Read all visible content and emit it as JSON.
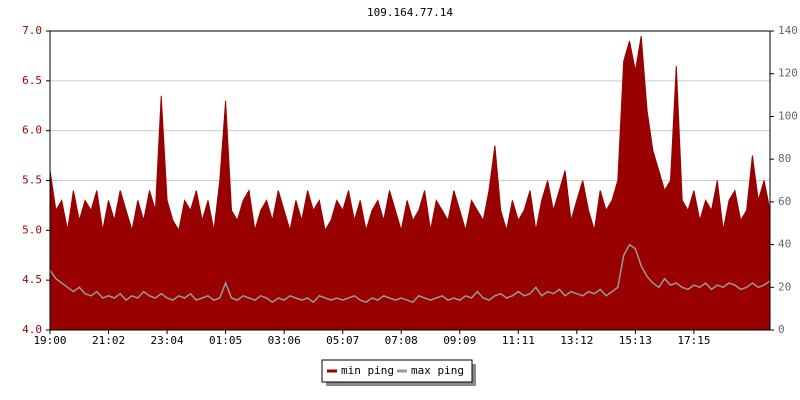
{
  "chart_data": {
    "type": "line",
    "title": "109.164.77.14",
    "categories": [
      "19:00",
      null,
      null,
      null,
      null,
      null,
      null,
      null,
      null,
      null,
      "21:02",
      null,
      null,
      null,
      null,
      null,
      null,
      null,
      null,
      null,
      "23:04",
      null,
      null,
      null,
      null,
      null,
      null,
      null,
      null,
      null,
      "01:05",
      null,
      null,
      null,
      null,
      null,
      null,
      null,
      null,
      null,
      "03:06",
      null,
      null,
      null,
      null,
      null,
      null,
      null,
      null,
      null,
      "05:07",
      null,
      null,
      null,
      null,
      null,
      null,
      null,
      null,
      null,
      "07:08",
      null,
      null,
      null,
      null,
      null,
      null,
      null,
      null,
      null,
      "09:09",
      null,
      null,
      null,
      null,
      null,
      null,
      null,
      null,
      null,
      "11:11",
      null,
      null,
      null,
      null,
      null,
      null,
      null,
      null,
      null,
      "13:12",
      null,
      null,
      null,
      null,
      null,
      null,
      null,
      null,
      null,
      "15:13",
      null,
      null,
      null,
      null,
      null,
      null,
      null,
      null,
      null,
      "17:15",
      null,
      null,
      null,
      null,
      null,
      null,
      null,
      null,
      null,
      null,
      null,
      null,
      null
    ],
    "series": [
      {
        "name": "min ping",
        "color": "#990000",
        "fill": true,
        "values": [
          5.6,
          5.2,
          5.3,
          5.0,
          5.4,
          5.1,
          5.3,
          5.2,
          5.4,
          5.0,
          5.3,
          5.1,
          5.4,
          5.2,
          5.0,
          5.3,
          5.1,
          5.4,
          5.2,
          6.35,
          5.3,
          5.1,
          5.0,
          5.3,
          5.2,
          5.4,
          5.1,
          5.3,
          5.0,
          5.5,
          6.3,
          5.2,
          5.1,
          5.3,
          5.4,
          5.0,
          5.2,
          5.3,
          5.1,
          5.4,
          5.2,
          5.0,
          5.3,
          5.1,
          5.4,
          5.2,
          5.3,
          5.0,
          5.1,
          5.3,
          5.2,
          5.4,
          5.1,
          5.3,
          5.0,
          5.2,
          5.3,
          5.1,
          5.4,
          5.2,
          5.0,
          5.3,
          5.1,
          5.2,
          5.4,
          5.0,
          5.3,
          5.2,
          5.1,
          5.4,
          5.2,
          5.0,
          5.3,
          5.2,
          5.1,
          5.4,
          5.85,
          5.2,
          5.0,
          5.3,
          5.1,
          5.2,
          5.4,
          5.0,
          5.3,
          5.5,
          5.2,
          5.4,
          5.6,
          5.1,
          5.3,
          5.5,
          5.2,
          5.0,
          5.4,
          5.2,
          5.3,
          5.5,
          6.7,
          6.9,
          6.6,
          6.95,
          6.2,
          5.8,
          5.6,
          5.4,
          5.5,
          6.65,
          5.3,
          5.2,
          5.4,
          5.1,
          5.3,
          5.2,
          5.5,
          5.0,
          5.3,
          5.4,
          5.1,
          5.2,
          5.75,
          5.3,
          5.5,
          5.2
        ]
      },
      {
        "name": "max ping",
        "color": "#999999",
        "axis": "y2",
        "fill": false,
        "values": [
          28,
          24,
          22,
          20,
          18,
          20,
          17,
          16,
          18,
          15,
          16,
          15,
          17,
          14,
          16,
          15,
          18,
          16,
          15,
          17,
          15,
          14,
          16,
          15,
          17,
          14,
          15,
          16,
          14,
          15,
          22,
          15,
          14,
          16,
          15,
          14,
          16,
          15,
          13,
          15,
          14,
          16,
          15,
          14,
          15,
          13,
          16,
          15,
          14,
          15,
          14,
          15,
          16,
          14,
          13,
          15,
          14,
          16,
          15,
          14,
          15,
          14,
          13,
          16,
          15,
          14,
          15,
          16,
          14,
          15,
          14,
          16,
          15,
          18,
          15,
          14,
          16,
          17,
          15,
          16,
          18,
          16,
          17,
          20,
          16,
          18,
          17,
          19,
          16,
          18,
          17,
          16,
          18,
          17,
          19,
          16,
          18,
          20,
          35,
          40,
          38,
          30,
          25,
          22,
          20,
          24,
          21,
          22,
          20,
          19,
          21,
          20,
          22,
          19,
          21,
          20,
          22,
          21,
          19,
          20,
          22,
          20,
          21,
          23
        ]
      }
    ],
    "ylim": [
      4,
      7
    ],
    "yticks": [
      {
        "value": 4,
        "label": "4.0"
      },
      4.5,
      {
        "value": 5,
        "label": "5.0"
      },
      5.5,
      {
        "value": 6,
        "label": "6.0"
      },
      6.5,
      {
        "value": 7,
        "label": "7.0"
      }
    ],
    "y2lim": [
      0,
      140
    ],
    "y2ticks": [
      0,
      20,
      40,
      60,
      80,
      100,
      120,
      140
    ],
    "grid": true,
    "legend": "bottom"
  }
}
